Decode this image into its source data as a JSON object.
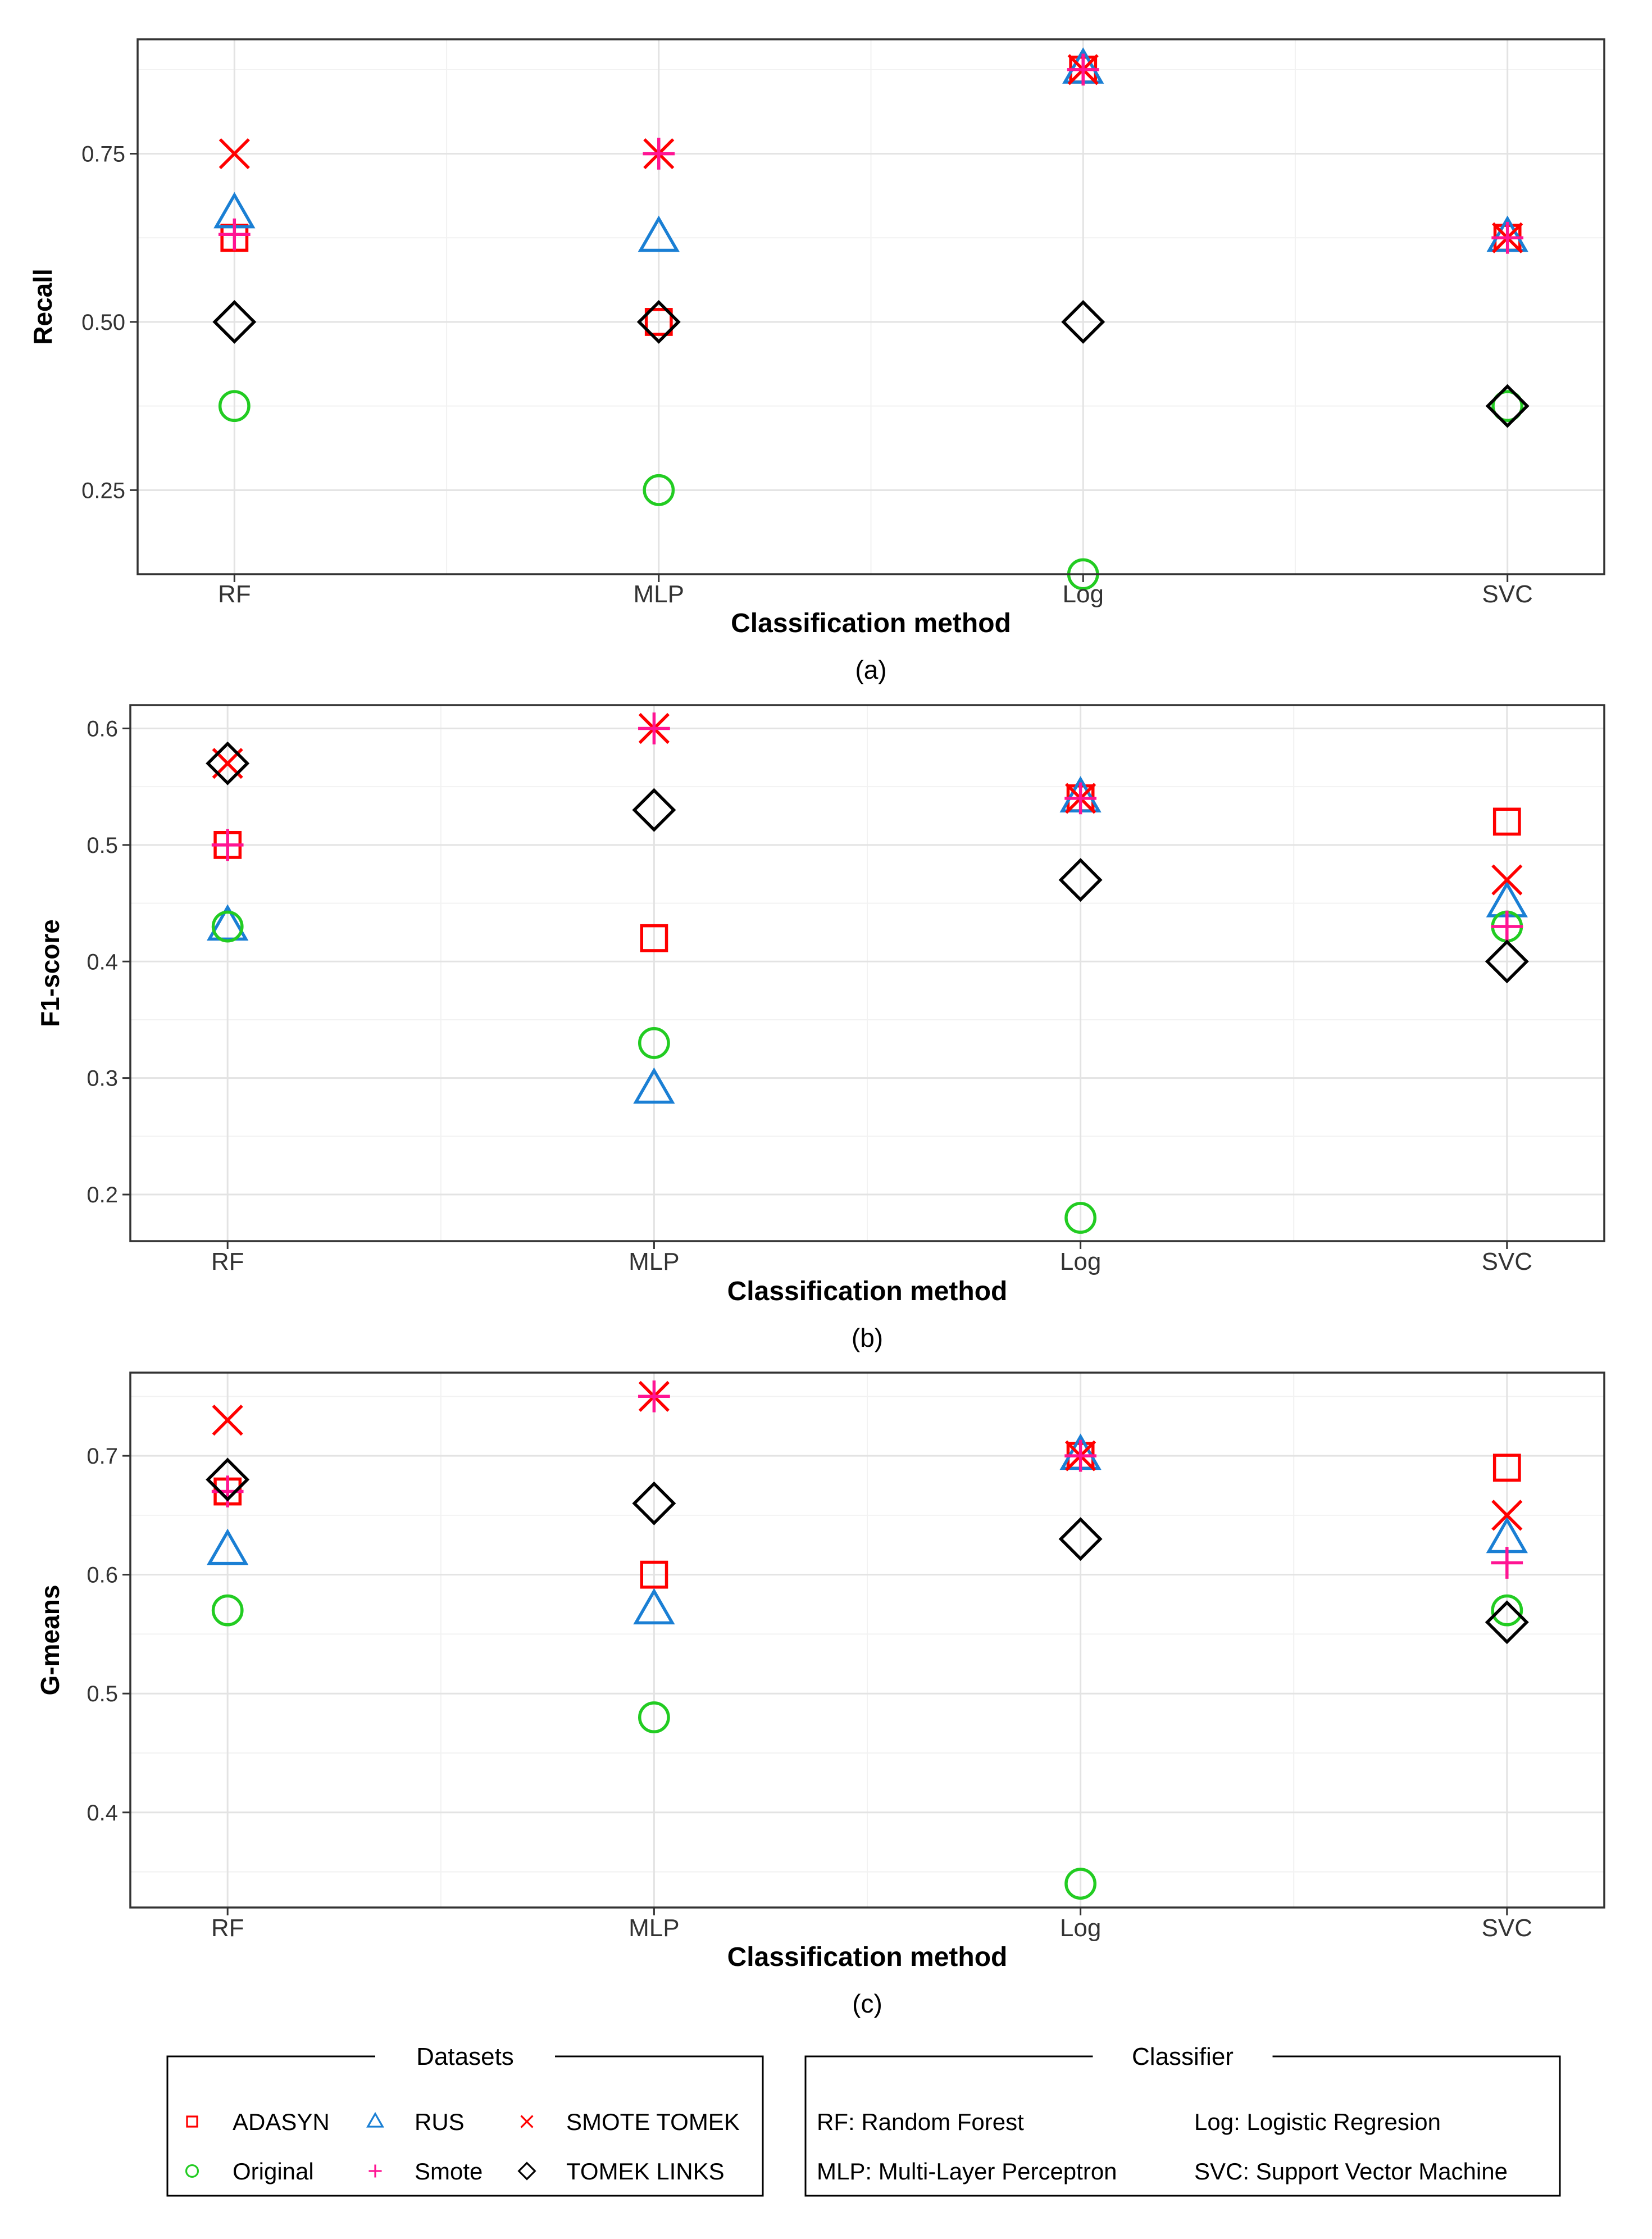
{
  "chart_data": [
    {
      "type": "scatter",
      "xlabel": "Classification method",
      "ylabel": "Recall",
      "caption": "(a)",
      "categories": [
        "RF",
        "MLP",
        "Log",
        "SVC"
      ],
      "ylim": [
        0.125,
        0.92
      ],
      "yticks": [
        0.25,
        0.5,
        0.75
      ],
      "ytick_labels": [
        "0.25",
        "0.50",
        "0.75"
      ],
      "minor_yticks": [
        0.125,
        0.375,
        0.625,
        0.875
      ],
      "grid": true,
      "series": [
        {
          "name": "ADASYN",
          "values": [
            0.625,
            0.5,
            0.875,
            0.625
          ]
        },
        {
          "name": "RUS",
          "values": [
            0.66,
            0.625,
            0.875,
            0.625
          ]
        },
        {
          "name": "SMOTE TOMEK",
          "values": [
            0.75,
            0.75,
            0.875,
            0.625
          ]
        },
        {
          "name": "Original",
          "values": [
            0.375,
            0.25,
            0.125,
            0.375
          ]
        },
        {
          "name": "Smote",
          "values": [
            0.63,
            0.75,
            0.875,
            0.625
          ]
        },
        {
          "name": "TOMEK LINKS",
          "values": [
            0.5,
            0.5,
            0.5,
            0.375
          ]
        }
      ]
    },
    {
      "type": "scatter",
      "xlabel": "Classification method",
      "ylabel": "F1-score",
      "caption": "(b)",
      "categories": [
        "RF",
        "MLP",
        "Log",
        "SVC"
      ],
      "ylim": [
        0.16,
        0.62
      ],
      "yticks": [
        0.2,
        0.3,
        0.4,
        0.5,
        0.6
      ],
      "ytick_labels": [
        "0.2",
        "0.3",
        "0.4",
        "0.5",
        "0.6"
      ],
      "minor_yticks": [
        0.25,
        0.35,
        0.45,
        0.55
      ],
      "grid": true,
      "series": [
        {
          "name": "ADASYN",
          "values": [
            0.5,
            0.42,
            0.54,
            0.52
          ]
        },
        {
          "name": "RUS",
          "values": [
            0.43,
            0.29,
            0.54,
            0.45
          ]
        },
        {
          "name": "SMOTE TOMEK",
          "values": [
            0.57,
            0.6,
            0.54,
            0.47
          ]
        },
        {
          "name": "Original",
          "values": [
            0.43,
            0.33,
            0.18,
            0.43
          ]
        },
        {
          "name": "Smote",
          "values": [
            0.5,
            0.6,
            0.54,
            0.43
          ]
        },
        {
          "name": "TOMEK LINKS",
          "values": [
            0.57,
            0.53,
            0.47,
            0.4
          ]
        }
      ]
    },
    {
      "type": "scatter",
      "xlabel": "Classification method",
      "ylabel": "G-means",
      "caption": "(c)",
      "categories": [
        "RF",
        "MLP",
        "Log",
        "SVC"
      ],
      "ylim": [
        0.32,
        0.77
      ],
      "yticks": [
        0.4,
        0.5,
        0.6,
        0.7
      ],
      "ytick_labels": [
        "0.4",
        "0.5",
        "0.6",
        "0.7"
      ],
      "minor_yticks": [
        0.35,
        0.45,
        0.55,
        0.65,
        0.75
      ],
      "grid": true,
      "series": [
        {
          "name": "ADASYN",
          "values": [
            0.67,
            0.6,
            0.7,
            0.69
          ]
        },
        {
          "name": "RUS",
          "values": [
            0.62,
            0.57,
            0.7,
            0.63
          ]
        },
        {
          "name": "SMOTE TOMEK",
          "values": [
            0.73,
            0.75,
            0.7,
            0.65
          ]
        },
        {
          "name": "Original",
          "values": [
            0.57,
            0.48,
            0.34,
            0.57
          ]
        },
        {
          "name": "Smote",
          "values": [
            0.67,
            0.75,
            0.7,
            0.61
          ]
        },
        {
          "name": "TOMEK LINKS",
          "values": [
            0.68,
            0.66,
            0.63,
            0.56
          ]
        }
      ]
    }
  ],
  "styles": {
    "ADASYN": {
      "shape": "square",
      "color": "#ff0000"
    },
    "RUS": {
      "shape": "triangle",
      "color": "#1a7fd4"
    },
    "SMOTE TOMEK": {
      "shape": "cross",
      "color": "#ff0000"
    },
    "Original": {
      "shape": "circle",
      "color": "#22cc22"
    },
    "Smote": {
      "shape": "plus",
      "color": "#ff1493"
    },
    "TOMEK LINKS": {
      "shape": "diamond",
      "color": "#000000"
    }
  },
  "legend": {
    "datasets_title": "Datasets",
    "dataset_items": [
      {
        "label": "ADASYN",
        "series": "ADASYN"
      },
      {
        "label": "RUS",
        "series": "RUS"
      },
      {
        "label": "SMOTE TOMEK",
        "series": "SMOTE TOMEK"
      },
      {
        "label": "Original",
        "series": "Original"
      },
      {
        "label": "Smote",
        "series": "Smote"
      },
      {
        "label": "TOMEK LINKS",
        "series": "TOMEK LINKS"
      }
    ],
    "classifier_title": "Classifier",
    "classifier_items": [
      "RF: Random Forest",
      "Log: Logistic Regresion",
      "MLP: Multi-Layer Perceptron",
      "SVC: Support Vector Machine"
    ]
  }
}
